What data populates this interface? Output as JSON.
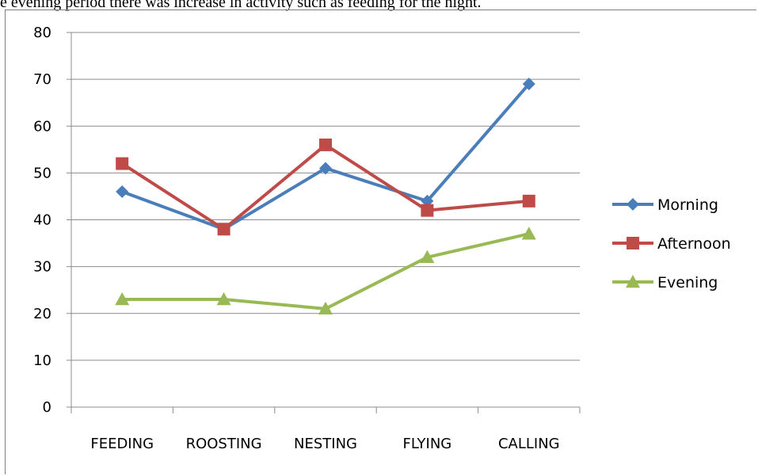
{
  "caption": "e evening period there was increase in activity such as feeding for the night.",
  "chart_data": {
    "type": "line",
    "categories": [
      "FEEDING",
      "ROOSTING",
      "NESTING",
      "FLYING",
      "CALLING"
    ],
    "series": [
      {
        "name": "Morning",
        "values": [
          46,
          38,
          51,
          44,
          69
        ],
        "color": "#4a7ebb",
        "marker": "diamond"
      },
      {
        "name": "Afternoon",
        "values": [
          52,
          38,
          56,
          42,
          44
        ],
        "color": "#be4b48",
        "marker": "square"
      },
      {
        "name": "Evening",
        "values": [
          23,
          23,
          21,
          32,
          37
        ],
        "color": "#98b954",
        "marker": "triangle"
      }
    ],
    "ylim": [
      0,
      80
    ],
    "yticks": [
      0,
      10,
      20,
      30,
      40,
      50,
      60,
      70,
      80
    ],
    "grid": true,
    "legend": "right"
  }
}
